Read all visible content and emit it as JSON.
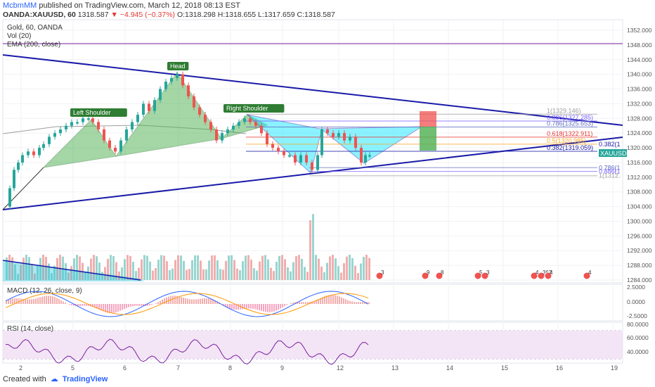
{
  "header": {
    "user": "McbmMM",
    "published": "published on TradingView.com, March 12, 2018 08:13 EST",
    "symbol": "OANDA:XAUUSD, 60",
    "last": "1318.587",
    "change": "▼ −4.945 (−0.37%)",
    "o": "O:1318.298",
    "h": "H:1318.655",
    "l": "L:1317.659",
    "c": "C:1318.587"
  },
  "legend": {
    "title": "Gold, 60, OANDA",
    "vol": "Vol (20)",
    "ema": "EMA (200, close)"
  },
  "panes": {
    "macd_title": "MACD (12, 26, close, 9)",
    "rsi_title": "RSI (14, close)"
  },
  "footer": {
    "created_with": "Created with",
    "brand": "TradingView"
  },
  "colors": {
    "green": "#26a69a",
    "red": "#ef5350",
    "trend": "#1a1aa8",
    "pattern": "#4caf50",
    "cyan": "#00e5ff",
    "purple": "#7b1fa2"
  },
  "chart_data": {
    "type": "candlestick",
    "x_ticks": [
      "2",
      "5",
      "6",
      "7",
      "8",
      "9",
      "12",
      "13",
      "14",
      "15",
      "16",
      "19"
    ],
    "y_ticks": [
      1352,
      1348,
      1344,
      1340,
      1336,
      1332,
      1328,
      1324,
      1320,
      1316,
      1312,
      1308,
      1304,
      1300,
      1296,
      1292,
      1288,
      1284
    ],
    "ylim": [
      1282,
      1354
    ],
    "price_tag": "XAUUSD",
    "price_value": 1318.587,
    "pattern_labels": [
      "Left Shoulder",
      "Head",
      "Right Shoulder"
    ],
    "fib_labels": [
      {
        "text": "1(1329.146)",
        "value": 1329.146,
        "color": "#9e9e9e"
      },
      {
        "text": "0.886(1327.285)",
        "value": 1327.285,
        "color": "#7b61ff"
      },
      {
        "text": "0.786(1325.653)",
        "value": 1325.653,
        "color": "#5c6bc0"
      },
      {
        "text": "0.618(1322.911)",
        "value": 1322.911,
        "color": "#e53935"
      },
      {
        "text": "0.5(1320.985)",
        "value": 1320.985,
        "color": "#f9a825"
      },
      {
        "text": "0.382(1319.059)",
        "value": 1319.059,
        "color": "#1a1aa8"
      }
    ],
    "fib_labels_lower": [
      "0.786(1",
      "0.886(1",
      "1(1312."
    ],
    "side_label": "0.382(1",
    "macd_ticks": [
      "2.5000",
      "0.0000",
      "-2.5000"
    ],
    "rsi_ticks": [
      "80.0000",
      "60.0000",
      "40.0000"
    ],
    "event_labels": [
      "3",
      "9",
      "8",
      "5",
      "3",
      "4",
      "362",
      "4",
      "4"
    ]
  }
}
